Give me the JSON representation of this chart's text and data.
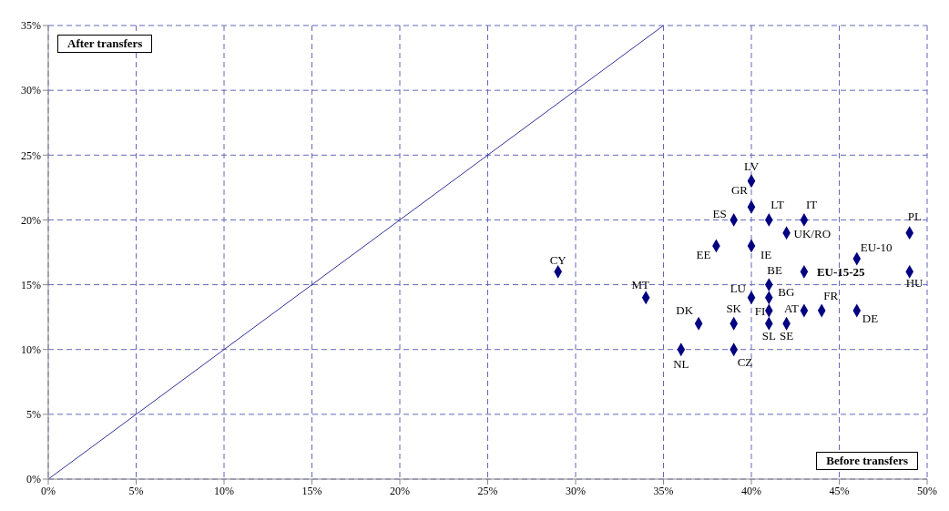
{
  "chart_data": {
    "type": "scatter",
    "xlabel": "Before transfers",
    "ylabel": "After transfers",
    "xlim": [
      0,
      50
    ],
    "ylim": [
      0,
      35
    ],
    "xticks": [
      {
        "value": 0,
        "label": "0%"
      },
      {
        "value": 5,
        "label": "5%"
      },
      {
        "value": 10,
        "label": "10%"
      },
      {
        "value": 15,
        "label": "15%"
      },
      {
        "value": 20,
        "label": "20%"
      },
      {
        "value": 25,
        "label": "25%"
      },
      {
        "value": 30,
        "label": "30%"
      },
      {
        "value": 35,
        "label": "35%"
      },
      {
        "value": 40,
        "label": "40%"
      },
      {
        "value": 45,
        "label": "45%"
      },
      {
        "value": 50,
        "label": "50%"
      }
    ],
    "yticks": [
      {
        "value": 0,
        "label": "0%"
      },
      {
        "value": 5,
        "label": "5%"
      },
      {
        "value": 10,
        "label": "10%"
      },
      {
        "value": 15,
        "label": "15%"
      },
      {
        "value": 20,
        "label": "20%"
      },
      {
        "value": 25,
        "label": "25%"
      },
      {
        "value": 30,
        "label": "30%"
      },
      {
        "value": 35,
        "label": "35%"
      }
    ],
    "grid": true,
    "legend": false,
    "series": [
      {
        "color": "#000080",
        "marker": "diamond",
        "x": [
          40,
          40,
          39,
          41,
          43,
          42,
          49,
          38,
          40,
          46,
          41,
          43,
          49,
          29,
          34,
          40,
          41,
          41,
          43,
          44,
          46,
          37,
          39,
          41,
          42,
          36,
          39
        ],
        "values": [
          23,
          21,
          20,
          20,
          20,
          19,
          19,
          18,
          18,
          17,
          15,
          16,
          16,
          16,
          14,
          14,
          14,
          13,
          13,
          13,
          13,
          12,
          12,
          12,
          12,
          10,
          10
        ]
      },
      {
        "type": "line",
        "color": "#333399",
        "line_style": "solid",
        "marker": "none",
        "x": [
          0,
          35
        ],
        "values": [
          0,
          35
        ]
      }
    ],
    "annotations": [
      {
        "text": "LV",
        "x": 40,
        "y": 23
      },
      {
        "text": "GR",
        "x": 40,
        "y": 21
      },
      {
        "text": "ES",
        "x": 39,
        "y": 20
      },
      {
        "text": "LT",
        "x": 41,
        "y": 20
      },
      {
        "text": "IT",
        "x": 43,
        "y": 20
      },
      {
        "text": "UK/RO",
        "x": 42,
        "y": 19
      },
      {
        "text": "PL",
        "x": 49,
        "y": 19
      },
      {
        "text": "EE",
        "x": 38,
        "y": 18
      },
      {
        "text": "IE",
        "x": 40,
        "y": 18
      },
      {
        "text": "EU-10",
        "x": 46,
        "y": 17
      },
      {
        "text": "BE",
        "x": 41,
        "y": 15
      },
      {
        "text": "EU-15-25",
        "x": 43,
        "y": 16
      },
      {
        "text": "HU",
        "x": 49,
        "y": 16
      },
      {
        "text": "CY",
        "x": 29,
        "y": 16
      },
      {
        "text": "MT",
        "x": 34,
        "y": 14
      },
      {
        "text": "LU",
        "x": 40,
        "y": 14
      },
      {
        "text": "BG",
        "x": 41,
        "y": 14
      },
      {
        "text": "FI",
        "x": 41,
        "y": 13
      },
      {
        "text": "AT",
        "x": 43,
        "y": 13
      },
      {
        "text": "FR",
        "x": 44,
        "y": 13
      },
      {
        "text": "DE",
        "x": 46,
        "y": 13
      },
      {
        "text": "DK",
        "x": 37,
        "y": 12
      },
      {
        "text": "SK",
        "x": 39,
        "y": 12
      },
      {
        "text": "SL",
        "x": 41,
        "y": 12
      },
      {
        "text": "SE",
        "x": 42,
        "y": 12
      },
      {
        "text": "NL",
        "x": 36,
        "y": 10
      },
      {
        "text": "CZ",
        "x": 39,
        "y": 10
      }
    ]
  }
}
